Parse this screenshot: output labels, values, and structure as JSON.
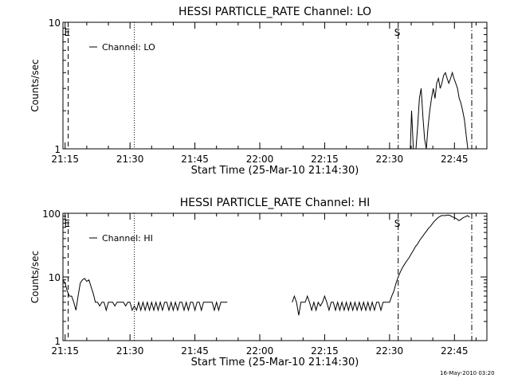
{
  "colors": {
    "background": "#ffffff",
    "foreground": "#000000"
  },
  "footer": {
    "timestamp": "16-May-2010 03:20"
  },
  "chart_data": [
    {
      "type": "line",
      "title": "HESSI PARTICLE_RATE Channel: LO",
      "xlabel": "Start Time (25-Mar-10 21:14:30)",
      "ylabel": "Counts/sec",
      "yscale": "log",
      "xlim": [
        0,
        98
      ],
      "ylim": [
        1,
        10
      ],
      "x_ticks": [
        0.5,
        15.5,
        30.5,
        45.5,
        60.5,
        75.5,
        90.5
      ],
      "x_tick_labels": [
        "21:15",
        "21:30",
        "21:45",
        "22:00",
        "22:15",
        "22:30",
        "22:45"
      ],
      "y_ticks": [
        1,
        10
      ],
      "y_tick_labels": [
        "1",
        "10"
      ],
      "legend": {
        "label": "Channel: LO",
        "placement": "top-left"
      },
      "vlines": [
        {
          "x": 1.2,
          "style": "dashed",
          "label": "E"
        },
        {
          "x": 16.5,
          "style": "dotted",
          "label": ""
        },
        {
          "x": 77.5,
          "style": "dashdot",
          "label": "S"
        },
        {
          "x": 94.5,
          "style": "dashdot",
          "label": ""
        }
      ],
      "series": [
        {
          "name": "Channel: LO",
          "segments": [
            [
              [
                79.5,
                1
              ],
              [
                80.3,
                1
              ],
              [
                80.6,
                2
              ],
              [
                81,
                1
              ],
              [
                81.6,
                1
              ],
              [
                82,
                1.5
              ],
              [
                82.4,
                2.5
              ],
              [
                82.8,
                3
              ],
              [
                83.2,
                1.8
              ],
              [
                83.6,
                1.2
              ],
              [
                84,
                1
              ],
              [
                84.4,
                1.5
              ],
              [
                84.8,
                2
              ],
              [
                85.2,
                2.5
              ],
              [
                85.6,
                3
              ],
              [
                86,
                2.5
              ],
              [
                86.4,
                3.3
              ],
              [
                86.8,
                3.6
              ],
              [
                87.2,
                3
              ],
              [
                87.6,
                3.3
              ],
              [
                88,
                3.8
              ],
              [
                88.4,
                4
              ],
              [
                88.8,
                3.6
              ],
              [
                89.2,
                3.3
              ],
              [
                89.6,
                3.6
              ],
              [
                90,
                4
              ],
              [
                90.4,
                3.6
              ],
              [
                90.8,
                3.3
              ],
              [
                91.2,
                3
              ],
              [
                91.6,
                2.5
              ],
              [
                92,
                2.3
              ],
              [
                92.4,
                2
              ],
              [
                92.8,
                1.7
              ],
              [
                93.2,
                1.3
              ],
              [
                93.6,
                1
              ]
            ]
          ]
        }
      ]
    },
    {
      "type": "line",
      "title": "HESSI PARTICLE_RATE Channel: HI",
      "xlabel": "Start Time (25-Mar-10 21:14:30)",
      "ylabel": "Counts/sec",
      "yscale": "log",
      "xlim": [
        0,
        98
      ],
      "ylim": [
        1,
        100
      ],
      "x_ticks": [
        0.5,
        15.5,
        30.5,
        45.5,
        60.5,
        75.5,
        90.5
      ],
      "x_tick_labels": [
        "21:15",
        "21:30",
        "21:45",
        "22:00",
        "22:15",
        "22:30",
        "22:45"
      ],
      "y_ticks": [
        1,
        10,
        100
      ],
      "y_tick_labels": [
        "1",
        "10",
        "100"
      ],
      "legend": {
        "label": "Channel: HI",
        "placement": "top-left"
      },
      "vlines": [
        {
          "x": 1.2,
          "style": "dashed",
          "label": "E"
        },
        {
          "x": 16.5,
          "style": "dotted",
          "label": ""
        },
        {
          "x": 77.5,
          "style": "dashdot",
          "label": "S"
        },
        {
          "x": 94.5,
          "style": "dashdot",
          "label": ""
        }
      ],
      "series": [
        {
          "name": "Channel: HI",
          "segments": [
            [
              [
                0,
                9
              ],
              [
                0.5,
                8
              ],
              [
                1,
                6
              ],
              [
                1.5,
                5
              ],
              [
                2,
                5
              ],
              [
                2.5,
                4
              ],
              [
                3,
                3
              ],
              [
                3.5,
                5
              ],
              [
                4,
                8
              ],
              [
                4.5,
                9
              ],
              [
                5,
                9.5
              ],
              [
                5.5,
                8.5
              ],
              [
                6,
                9
              ],
              [
                6.5,
                7
              ],
              [
                7,
                5.5
              ],
              [
                7.5,
                4
              ],
              [
                8,
                4
              ],
              [
                8.5,
                3.5
              ],
              [
                9,
                4
              ],
              [
                9.5,
                4
              ],
              [
                10,
                3
              ],
              [
                10.5,
                4
              ],
              [
                11,
                4
              ],
              [
                11.5,
                4
              ],
              [
                12,
                3.5
              ],
              [
                12.5,
                4
              ],
              [
                13,
                4
              ],
              [
                13.5,
                4
              ],
              [
                14,
                4
              ],
              [
                14.5,
                3.5
              ],
              [
                15,
                4
              ],
              [
                15.5,
                4
              ],
              [
                16,
                3
              ],
              [
                16.5,
                3.5
              ],
              [
                17,
                3
              ],
              [
                17.5,
                4
              ],
              [
                18,
                3
              ],
              [
                18.5,
                4
              ],
              [
                19,
                3
              ],
              [
                19.5,
                4
              ],
              [
                20,
                3
              ],
              [
                20.5,
                4
              ],
              [
                21,
                3
              ],
              [
                21.5,
                4
              ],
              [
                22,
                3
              ],
              [
                22.5,
                4
              ],
              [
                23,
                3
              ],
              [
                23.5,
                4
              ],
              [
                24,
                4
              ],
              [
                24.5,
                3
              ],
              [
                25,
                4
              ],
              [
                25.5,
                3
              ],
              [
                26,
                4
              ],
              [
                26.5,
                3
              ],
              [
                27,
                4
              ],
              [
                27.5,
                4
              ],
              [
                28,
                3
              ],
              [
                28.5,
                4
              ],
              [
                29,
                3
              ],
              [
                29.5,
                4
              ],
              [
                30,
                4
              ],
              [
                30.5,
                3
              ],
              [
                31,
                4
              ],
              [
                31.5,
                4
              ],
              [
                32,
                3
              ],
              [
                32.5,
                4
              ],
              [
                33,
                4
              ],
              [
                33.5,
                4
              ],
              [
                34,
                4
              ],
              [
                34.5,
                4
              ],
              [
                35,
                3
              ],
              [
                35.5,
                4
              ],
              [
                36,
                3
              ],
              [
                36.5,
                4
              ],
              [
                37,
                4
              ],
              [
                37.5,
                4
              ],
              [
                38,
                4
              ]
            ],
            [
              [
                53,
                4
              ],
              [
                53.5,
                5
              ],
              [
                54,
                4
              ],
              [
                54.5,
                2.5
              ],
              [
                55,
                4
              ],
              [
                55.5,
                4
              ],
              [
                56,
                4
              ],
              [
                56.5,
                5
              ],
              [
                57,
                4
              ],
              [
                57.5,
                3
              ],
              [
                58,
                4
              ],
              [
                58.5,
                3
              ],
              [
                59,
                4
              ],
              [
                59.5,
                3.5
              ],
              [
                60,
                4
              ],
              [
                60.5,
                5
              ],
              [
                61,
                4
              ],
              [
                61.5,
                3
              ],
              [
                62,
                4
              ],
              [
                62.5,
                4
              ],
              [
                63,
                3
              ],
              [
                63.5,
                4
              ],
              [
                64,
                3
              ],
              [
                64.5,
                4
              ],
              [
                65,
                3
              ],
              [
                65.5,
                4
              ],
              [
                66,
                3
              ],
              [
                66.5,
                4
              ],
              [
                67,
                3
              ],
              [
                67.5,
                4
              ],
              [
                68,
                3
              ],
              [
                68.5,
                4
              ],
              [
                69,
                3
              ],
              [
                69.5,
                4
              ],
              [
                70,
                3
              ],
              [
                70.5,
                4
              ],
              [
                71,
                3
              ],
              [
                71.5,
                4
              ],
              [
                72,
                3
              ],
              [
                72.5,
                4
              ],
              [
                73,
                4
              ],
              [
                73.5,
                3
              ],
              [
                74,
                4
              ],
              [
                74.5,
                4
              ],
              [
                75,
                4
              ],
              [
                75.5,
                4
              ],
              [
                76,
                5
              ],
              [
                76.5,
                6
              ],
              [
                77,
                8
              ],
              [
                77.5,
                10
              ],
              [
                78,
                12
              ],
              [
                78.5,
                14
              ],
              [
                79,
                16
              ],
              [
                79.5,
                18
              ],
              [
                80,
                20
              ],
              [
                80.5,
                23
              ],
              [
                81,
                26
              ],
              [
                81.5,
                30
              ],
              [
                82,
                33
              ],
              [
                82.5,
                38
              ],
              [
                83,
                42
              ],
              [
                83.5,
                47
              ],
              [
                84,
                52
              ],
              [
                84.5,
                58
              ],
              [
                85,
                63
              ],
              [
                85.5,
                70
              ],
              [
                86,
                77
              ],
              [
                86.5,
                83
              ],
              [
                87,
                88
              ],
              [
                87.5,
                92
              ],
              [
                88,
                92
              ],
              [
                88.5,
                92
              ],
              [
                89,
                94
              ],
              [
                89.5,
                92
              ],
              [
                90,
                88
              ],
              [
                90.5,
                85
              ],
              [
                91,
                82
              ],
              [
                91.5,
                77
              ],
              [
                92,
                80
              ],
              [
                92.5,
                85
              ],
              [
                93,
                88
              ],
              [
                93.5,
                92
              ],
              [
                94,
                87
              ]
            ]
          ]
        }
      ]
    }
  ]
}
